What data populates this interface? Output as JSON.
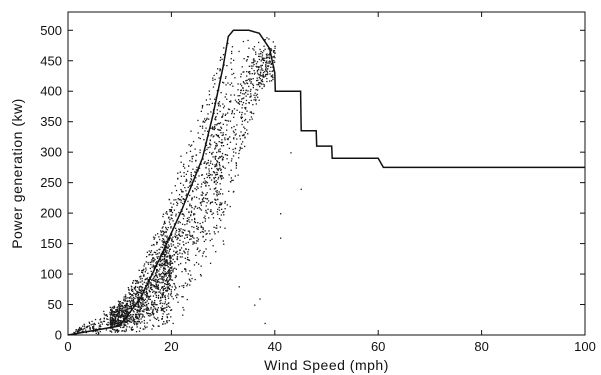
{
  "chart_data": {
    "type": "scatter",
    "title": "",
    "xlabel": "Wind Speed  (mph)",
    "ylabel": "Power generation  (kw)",
    "xlim": [
      0,
      100
    ],
    "ylim": [
      0,
      530
    ],
    "x_ticks": [
      0,
      20,
      40,
      60,
      80,
      100
    ],
    "y_ticks": [
      0,
      50,
      100,
      150,
      200,
      250,
      300,
      350,
      400,
      450,
      500
    ],
    "grid": false,
    "legend": "none",
    "colors": {
      "points": "#1a1a1a",
      "line": "#111111",
      "axes": "#111111"
    },
    "series": [
      {
        "kind": "scatter",
        "description_points": [
          [
            2,
            2
          ],
          [
            4,
            5
          ],
          [
            6,
            8
          ],
          [
            8,
            15
          ],
          [
            10,
            25
          ],
          [
            12,
            40
          ],
          [
            14,
            60
          ],
          [
            16,
            85
          ],
          [
            18,
            120
          ],
          [
            20,
            165
          ],
          [
            22,
            210
          ],
          [
            24,
            255
          ],
          [
            26,
            305
          ],
          [
            28,
            355
          ],
          [
            30,
            400
          ],
          [
            32,
            445
          ],
          [
            34,
            475
          ],
          [
            36,
            490
          ],
          [
            38,
            492
          ],
          [
            40,
            490
          ]
        ],
        "spread_band": [
          [
            1,
            0,
            10
          ],
          [
            5,
            0,
            30
          ],
          [
            10,
            0,
            60
          ],
          [
            14,
            0,
            120
          ],
          [
            18,
            0,
            200
          ],
          [
            22,
            30,
            310
          ],
          [
            26,
            60,
            420
          ],
          [
            30,
            150,
            495
          ],
          [
            34,
            300,
            495
          ],
          [
            38,
            400,
            495
          ],
          [
            42,
            440,
            492
          ]
        ]
      },
      {
        "kind": "line",
        "x": [
          0,
          10,
          14,
          18,
          22,
          26,
          28,
          30,
          31,
          32,
          35,
          37,
          39,
          40,
          40.1,
          45,
          45.1,
          48,
          48.1,
          51,
          51.1,
          60,
          61,
          70,
          80,
          90,
          100
        ],
        "y": [
          0,
          15,
          60,
          130,
          205,
          290,
          360,
          440,
          490,
          500,
          500,
          495,
          470,
          430,
          400,
          400,
          335,
          335,
          310,
          310,
          290,
          290,
          275,
          275,
          275,
          275,
          275
        ]
      }
    ]
  }
}
